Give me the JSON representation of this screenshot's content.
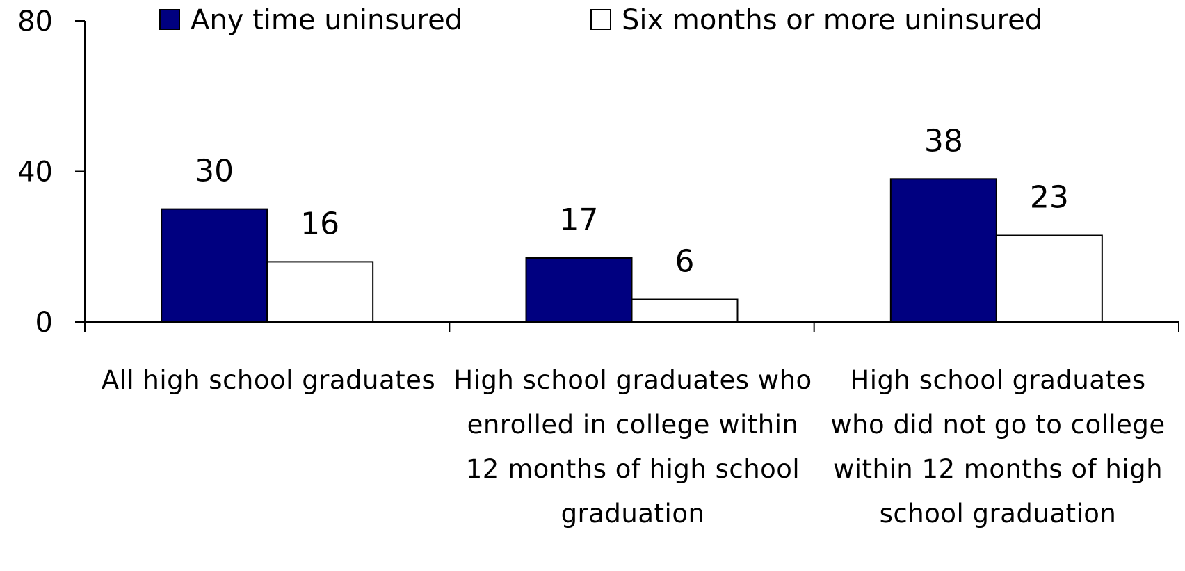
{
  "chart_data": {
    "type": "bar",
    "categories": [
      "All high school graduates",
      "High school graduates who enrolled in college within 12 months of high school graduation",
      "High school graduates who did not go to college within 12 months of high school graduation"
    ],
    "series": [
      {
        "name": "Any time uninsured",
        "values": [
          30,
          17,
          38
        ],
        "color": "#000080"
      },
      {
        "name": "Six months or more uninsured",
        "values": [
          16,
          6,
          23
        ],
        "color": "#ffffff"
      }
    ],
    "ylim": [
      0,
      80
    ],
    "yticks": [
      0,
      40,
      80
    ],
    "title": "",
    "xlabel": "",
    "ylabel": "",
    "legend_position": "top",
    "grid": false
  }
}
